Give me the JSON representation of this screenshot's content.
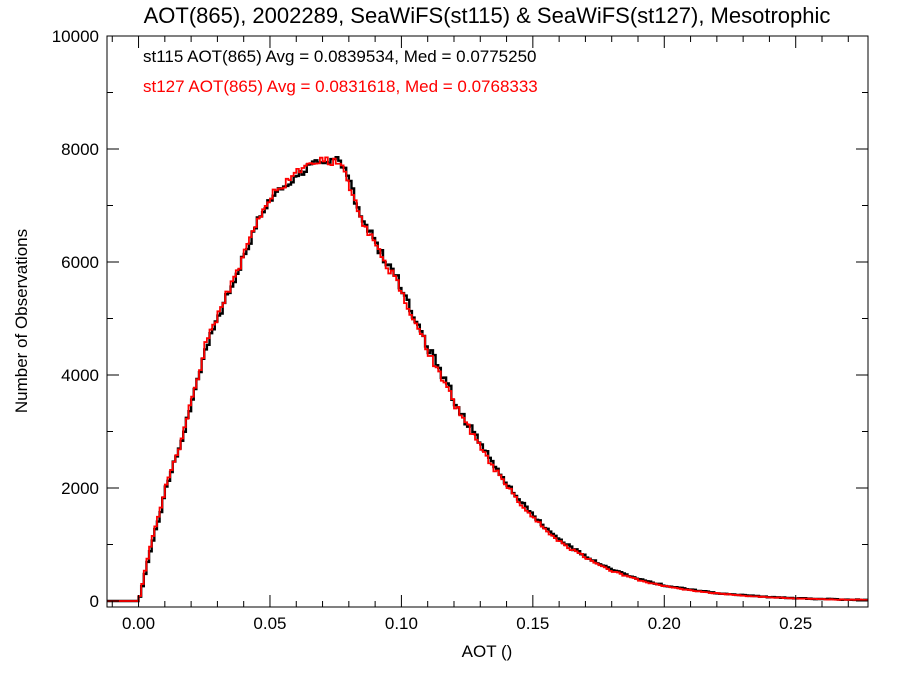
{
  "chart_data": {
    "type": "histogram",
    "title": "AOT(865), 2002289, SeaWiFS(st115) & SeaWiFS(st127), Mesotrophic",
    "xlabel": "AOT ()",
    "ylabel": "Number of Observations",
    "xlim": [
      -0.012,
      0.2775
    ],
    "ylim": [
      0,
      10000
    ],
    "xticks": [
      0.0,
      0.05,
      0.1,
      0.15,
      0.2,
      0.25
    ],
    "xtick_labels": [
      "0.00",
      "0.05",
      "0.10",
      "0.15",
      "0.20",
      "0.25"
    ],
    "yticks": [
      0,
      2000,
      4000,
      6000,
      8000,
      10000
    ],
    "ytick_labels": [
      "0",
      "2000",
      "4000",
      "6000",
      "8000",
      "10000"
    ],
    "bin_width": 0.001,
    "series": [
      {
        "name": "st115",
        "color": "#000000",
        "annotation": "st115 AOT(865) Avg = 0.0839534, Med = 0.0775250",
        "points": [
          [
            -0.012,
            0
          ],
          [
            0.0,
            0
          ],
          [
            0.001,
            150
          ],
          [
            0.003,
            600
          ],
          [
            0.005,
            1000
          ],
          [
            0.008,
            1500
          ],
          [
            0.01,
            1900
          ],
          [
            0.012,
            2250
          ],
          [
            0.015,
            2600
          ],
          [
            0.018,
            3100
          ],
          [
            0.02,
            3500
          ],
          [
            0.023,
            3950
          ],
          [
            0.025,
            4400
          ],
          [
            0.028,
            4800
          ],
          [
            0.03,
            4950
          ],
          [
            0.033,
            5300
          ],
          [
            0.035,
            5550
          ],
          [
            0.038,
            5800
          ],
          [
            0.04,
            6100
          ],
          [
            0.043,
            6400
          ],
          [
            0.045,
            6700
          ],
          [
            0.048,
            6900
          ],
          [
            0.05,
            7100
          ],
          [
            0.053,
            7250
          ],
          [
            0.055,
            7300
          ],
          [
            0.058,
            7450
          ],
          [
            0.06,
            7550
          ],
          [
            0.063,
            7620
          ],
          [
            0.065,
            7680
          ],
          [
            0.068,
            7760
          ],
          [
            0.07,
            7780
          ],
          [
            0.073,
            7800
          ],
          [
            0.075,
            7820
          ],
          [
            0.078,
            7700
          ],
          [
            0.08,
            7500
          ],
          [
            0.082,
            7150
          ],
          [
            0.085,
            6800
          ],
          [
            0.088,
            6550
          ],
          [
            0.09,
            6350
          ],
          [
            0.093,
            6100
          ],
          [
            0.095,
            5950
          ],
          [
            0.098,
            5750
          ],
          [
            0.1,
            5550
          ],
          [
            0.103,
            5250
          ],
          [
            0.105,
            5000
          ],
          [
            0.108,
            4750
          ],
          [
            0.11,
            4500
          ],
          [
            0.113,
            4250
          ],
          [
            0.115,
            4050
          ],
          [
            0.118,
            3850
          ],
          [
            0.12,
            3550
          ],
          [
            0.123,
            3300
          ],
          [
            0.125,
            3150
          ],
          [
            0.128,
            2950
          ],
          [
            0.13,
            2750
          ],
          [
            0.133,
            2580
          ],
          [
            0.135,
            2400
          ],
          [
            0.138,
            2230
          ],
          [
            0.14,
            2080
          ],
          [
            0.143,
            1920
          ],
          [
            0.145,
            1780
          ],
          [
            0.148,
            1620
          ],
          [
            0.15,
            1520
          ],
          [
            0.153,
            1380
          ],
          [
            0.155,
            1280
          ],
          [
            0.158,
            1170
          ],
          [
            0.16,
            1080
          ],
          [
            0.163,
            1000
          ],
          [
            0.165,
            930
          ],
          [
            0.168,
            860
          ],
          [
            0.17,
            790
          ],
          [
            0.173,
            720
          ],
          [
            0.175,
            660
          ],
          [
            0.178,
            600
          ],
          [
            0.18,
            550
          ],
          [
            0.183,
            510
          ],
          [
            0.185,
            470
          ],
          [
            0.188,
            430
          ],
          [
            0.19,
            390
          ],
          [
            0.193,
            360
          ],
          [
            0.195,
            330
          ],
          [
            0.198,
            300
          ],
          [
            0.2,
            275
          ],
          [
            0.205,
            235
          ],
          [
            0.21,
            200
          ],
          [
            0.215,
            170
          ],
          [
            0.22,
            140
          ],
          [
            0.225,
            120
          ],
          [
            0.23,
            100
          ],
          [
            0.235,
            85
          ],
          [
            0.24,
            70
          ],
          [
            0.245,
            60
          ],
          [
            0.25,
            50
          ],
          [
            0.255,
            42
          ],
          [
            0.26,
            35
          ],
          [
            0.265,
            30
          ],
          [
            0.27,
            25
          ],
          [
            0.2775,
            20
          ]
        ]
      },
      {
        "name": "st127",
        "color": "#ff0000",
        "annotation": "st127 AOT(865) Avg = 0.0831618, Med = 0.0768333",
        "points": [
          [
            -0.012,
            0
          ],
          [
            0.0,
            0
          ],
          [
            0.001,
            180
          ],
          [
            0.003,
            650
          ],
          [
            0.005,
            1050
          ],
          [
            0.008,
            1550
          ],
          [
            0.01,
            1950
          ],
          [
            0.012,
            2300
          ],
          [
            0.015,
            2650
          ],
          [
            0.018,
            3150
          ],
          [
            0.02,
            3550
          ],
          [
            0.023,
            4000
          ],
          [
            0.025,
            4450
          ],
          [
            0.028,
            4850
          ],
          [
            0.03,
            5000
          ],
          [
            0.033,
            5350
          ],
          [
            0.035,
            5600
          ],
          [
            0.038,
            5850
          ],
          [
            0.04,
            6150
          ],
          [
            0.043,
            6450
          ],
          [
            0.045,
            6750
          ],
          [
            0.048,
            6950
          ],
          [
            0.05,
            7150
          ],
          [
            0.053,
            7300
          ],
          [
            0.055,
            7350
          ],
          [
            0.058,
            7500
          ],
          [
            0.06,
            7580
          ],
          [
            0.063,
            7650
          ],
          [
            0.065,
            7700
          ],
          [
            0.068,
            7800
          ],
          [
            0.07,
            7820
          ],
          [
            0.073,
            7780
          ],
          [
            0.075,
            7760
          ],
          [
            0.078,
            7650
          ],
          [
            0.08,
            7420
          ],
          [
            0.082,
            7080
          ],
          [
            0.085,
            6750
          ],
          [
            0.088,
            6500
          ],
          [
            0.09,
            6300
          ],
          [
            0.093,
            6050
          ],
          [
            0.095,
            5900
          ],
          [
            0.098,
            5700
          ],
          [
            0.1,
            5480
          ],
          [
            0.103,
            5180
          ],
          [
            0.105,
            4950
          ],
          [
            0.108,
            4700
          ],
          [
            0.11,
            4450
          ],
          [
            0.113,
            4180
          ],
          [
            0.115,
            4000
          ],
          [
            0.118,
            3780
          ],
          [
            0.12,
            3500
          ],
          [
            0.123,
            3250
          ],
          [
            0.125,
            3100
          ],
          [
            0.128,
            2900
          ],
          [
            0.13,
            2700
          ],
          [
            0.133,
            2530
          ],
          [
            0.135,
            2350
          ],
          [
            0.138,
            2180
          ],
          [
            0.14,
            2030
          ],
          [
            0.143,
            1880
          ],
          [
            0.145,
            1740
          ],
          [
            0.148,
            1580
          ],
          [
            0.15,
            1480
          ],
          [
            0.153,
            1350
          ],
          [
            0.155,
            1250
          ],
          [
            0.158,
            1140
          ],
          [
            0.16,
            1050
          ],
          [
            0.163,
            970
          ],
          [
            0.165,
            900
          ],
          [
            0.168,
            830
          ],
          [
            0.17,
            770
          ],
          [
            0.173,
            700
          ],
          [
            0.175,
            640
          ],
          [
            0.178,
            580
          ],
          [
            0.18,
            530
          ],
          [
            0.183,
            490
          ],
          [
            0.185,
            450
          ],
          [
            0.188,
            410
          ],
          [
            0.19,
            375
          ],
          [
            0.193,
            345
          ],
          [
            0.195,
            315
          ],
          [
            0.198,
            290
          ],
          [
            0.2,
            265
          ],
          [
            0.205,
            225
          ],
          [
            0.21,
            190
          ],
          [
            0.215,
            160
          ],
          [
            0.22,
            135
          ],
          [
            0.225,
            115
          ],
          [
            0.23,
            95
          ],
          [
            0.235,
            80
          ],
          [
            0.24,
            68
          ],
          [
            0.245,
            57
          ],
          [
            0.25,
            48
          ],
          [
            0.255,
            40
          ],
          [
            0.26,
            33
          ],
          [
            0.265,
            28
          ],
          [
            0.27,
            23
          ],
          [
            0.2775,
            18
          ]
        ]
      }
    ]
  }
}
